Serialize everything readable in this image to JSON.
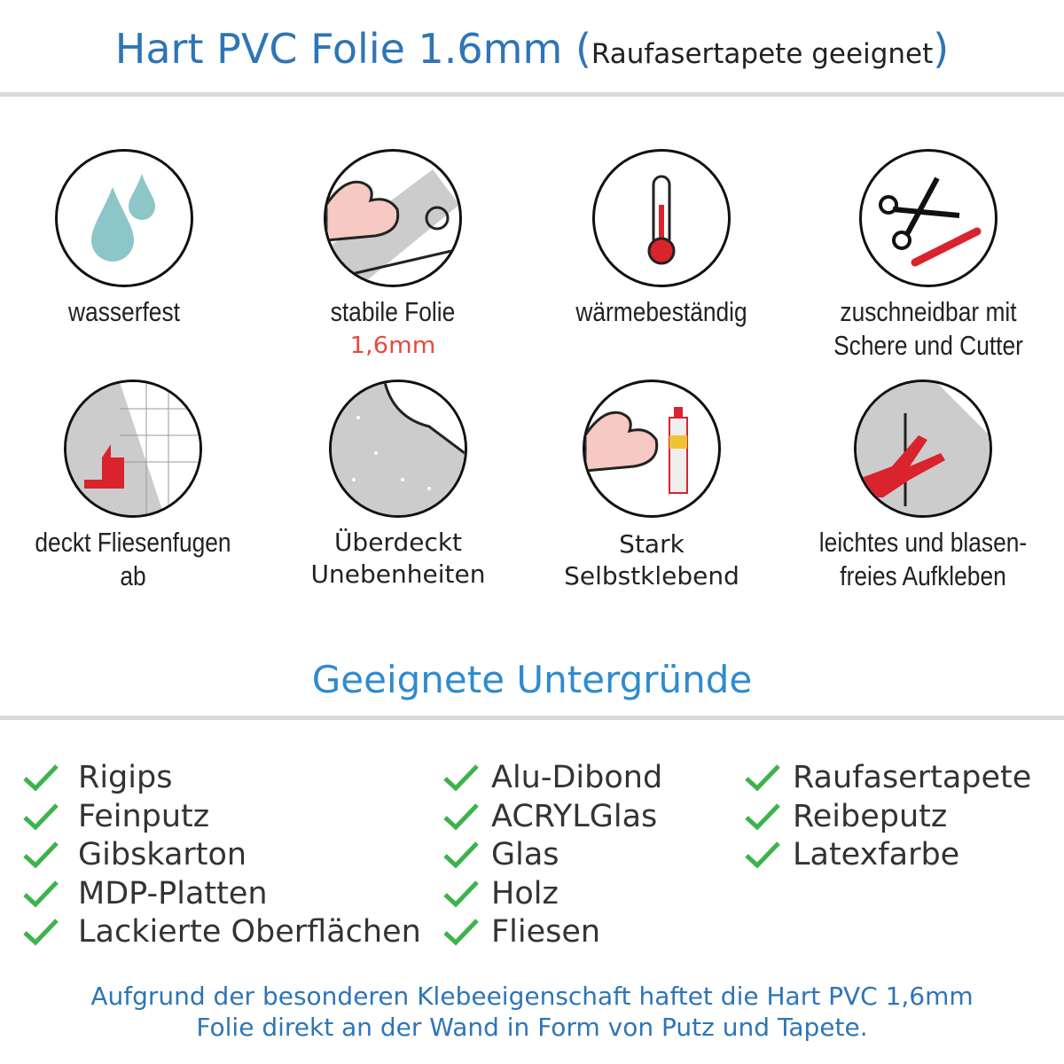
{
  "header": {
    "title": "Hart PVC Folie 1.6mm",
    "paren_open": "(",
    "subtitle": "Raufasertapete geeignet",
    "paren_close": ")"
  },
  "features": [
    {
      "icon": "water-drops-icon",
      "label": "wasserfest"
    },
    {
      "icon": "strong-arm-foil-icon",
      "label": "stabile Folie",
      "sublabel": "1,6mm"
    },
    {
      "icon": "thermometer-icon",
      "label": "wärmebeständig"
    },
    {
      "icon": "scissors-cutter-icon",
      "label": "zuschneidbar mit",
      "label2": "Schere und Cutter"
    },
    {
      "icon": "tile-thumbs-up-icon",
      "label": "deckt Fliesenfugen ab"
    },
    {
      "icon": "foil-peel-icon",
      "label": "Überdeckt",
      "label2": "Unebenheiten"
    },
    {
      "icon": "strong-arm-glue-icon",
      "label": "Stark",
      "label2": "Selbstklebend"
    },
    {
      "icon": "hand-smooth-icon",
      "label": "leichtes und blasen-",
      "label2": "freies Aufkleben"
    }
  ],
  "surfaces": {
    "title": "Geeignete Untergründe",
    "columns": [
      [
        "Rigips",
        "Feinputz",
        "Gibskarton",
        "MDP-Platten",
        "Lackierte Oberflächen"
      ],
      [
        "Alu-Dibond",
        "ACRYLGlas",
        "Glas",
        "Holz",
        "Fliesen"
      ],
      [
        "Raufasertapete",
        "Reibeputz",
        "Latexfarbe"
      ]
    ]
  },
  "footer": {
    "line1": "Aufgrund der besonderen Klebeeigenschaft haftet die Hart PVC 1,6mm",
    "line2": "Folie direkt an der Wand in Form von Putz und Tapete."
  },
  "colors": {
    "title_blue": "#2e75b6",
    "check_green": "#3cb44b",
    "accent_red": "#e64b3c"
  }
}
